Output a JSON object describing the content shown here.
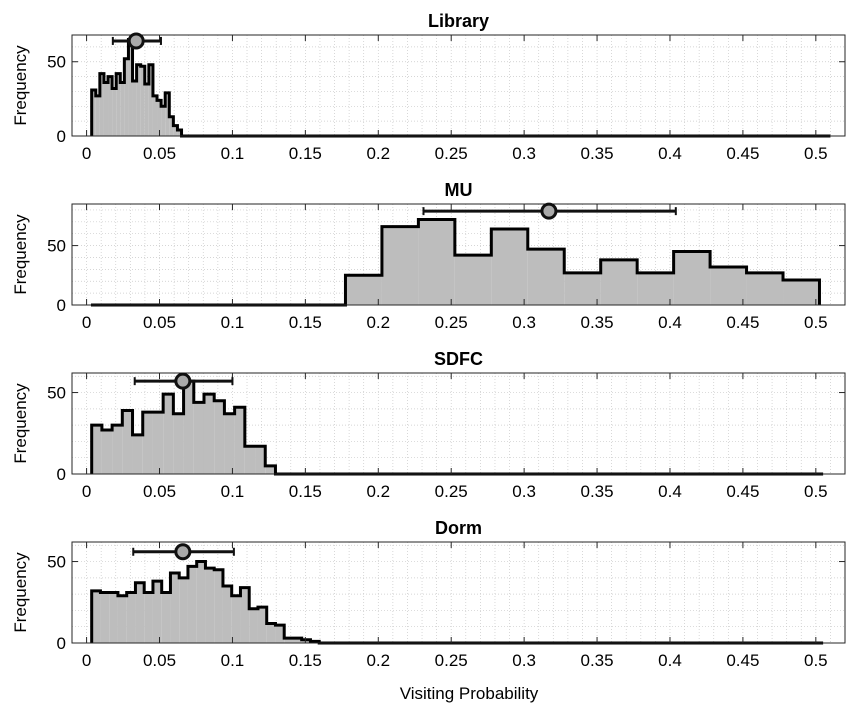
{
  "figure": {
    "xlabel": "Visiting Probability"
  },
  "chart_data": [
    {
      "type": "histogram",
      "title": "Library",
      "ylabel": "Frequency",
      "xlim": [
        -0.01,
        0.52
      ],
      "ylim": [
        0,
        68
      ],
      "xticks": [
        0,
        0.05,
        0.1,
        0.15,
        0.2,
        0.25,
        0.3,
        0.35,
        0.4,
        0.45,
        0.5
      ],
      "xticklabels": [
        "0",
        "0.05",
        "0.1",
        "0.15",
        "0.2",
        "0.25",
        "0.3",
        "0.35",
        "0.4",
        "0.45",
        "0.5"
      ],
      "yticks": [
        0,
        50
      ],
      "yticklabels": [
        "0",
        "50"
      ],
      "grid": true,
      "bin_edges": [
        0.0035,
        0.0063,
        0.0091,
        0.0119,
        0.0147,
        0.0175,
        0.0203,
        0.0231,
        0.0259,
        0.0287,
        0.0315,
        0.0343,
        0.0371,
        0.0399,
        0.0427,
        0.0455,
        0.0483,
        0.0511,
        0.0539,
        0.0567,
        0.0595,
        0.0623,
        0.0651,
        0.0679
      ],
      "counts": [
        31,
        27,
        42,
        36,
        40,
        32,
        42,
        36,
        52,
        65,
        37,
        48,
        47,
        35,
        48,
        27,
        24,
        20,
        29,
        13,
        7,
        4,
        0
      ],
      "tail_end": 0.51,
      "mean": 0.034,
      "err_low": 0.018,
      "err_high": 0.051,
      "marker_y": 64
    },
    {
      "type": "histogram",
      "title": "MU",
      "ylabel": "Frequency",
      "xlim": [
        -0.01,
        0.52
      ],
      "ylim": [
        0,
        85
      ],
      "xticks": [
        0,
        0.05,
        0.1,
        0.15,
        0.2,
        0.25,
        0.3,
        0.35,
        0.4,
        0.45,
        0.5
      ],
      "xticklabels": [
        "0",
        "0.05",
        "0.1",
        "0.15",
        "0.2",
        "0.25",
        "0.3",
        "0.35",
        "0.4",
        "0.45",
        "0.5"
      ],
      "yticks": [
        0,
        50
      ],
      "yticklabels": [
        "0",
        "50"
      ],
      "grid": true,
      "bin_edges": [
        0.1775,
        0.2025,
        0.2275,
        0.2525,
        0.2775,
        0.3025,
        0.3275,
        0.3525,
        0.3775,
        0.4025,
        0.4275,
        0.4525,
        0.4775,
        0.5025
      ],
      "counts": [
        25,
        66,
        72,
        42,
        64,
        47,
        27,
        38,
        27,
        45,
        32,
        27,
        21
      ],
      "head_start": 0.003,
      "mean": 0.317,
      "err_low": 0.231,
      "err_high": 0.404,
      "marker_y": 79
    },
    {
      "type": "histogram",
      "title": "SDFC",
      "ylabel": "Frequency",
      "xlim": [
        -0.01,
        0.52
      ],
      "ylim": [
        0,
        62
      ],
      "xticks": [
        0,
        0.05,
        0.1,
        0.15,
        0.2,
        0.25,
        0.3,
        0.35,
        0.4,
        0.45,
        0.5
      ],
      "xticklabels": [
        "0",
        "0.05",
        "0.1",
        "0.15",
        "0.2",
        "0.25",
        "0.3",
        "0.35",
        "0.4",
        "0.45",
        "0.5"
      ],
      "yticks": [
        0,
        50
      ],
      "yticklabels": [
        "0",
        "50"
      ],
      "grid": true,
      "bin_edges": [
        0.0035,
        0.0105,
        0.0175,
        0.0245,
        0.0315,
        0.0385,
        0.0455,
        0.0525,
        0.0595,
        0.0665,
        0.0735,
        0.0805,
        0.0875,
        0.0945,
        0.1015,
        0.1085,
        0.1155,
        0.1225,
        0.1295,
        0.1365
      ],
      "counts": [
        30,
        27,
        30,
        39,
        24,
        38,
        38,
        49,
        37,
        57,
        44,
        49,
        45,
        37,
        41,
        17,
        17,
        5,
        0
      ],
      "tail_end": 0.505,
      "mean": 0.066,
      "err_low": 0.033,
      "err_high": 0.1,
      "marker_y": 57
    },
    {
      "type": "histogram",
      "title": "Dorm",
      "ylabel": "Frequency",
      "xlim": [
        -0.01,
        0.52
      ],
      "ylim": [
        0,
        62
      ],
      "xticks": [
        0,
        0.05,
        0.1,
        0.15,
        0.2,
        0.25,
        0.3,
        0.35,
        0.4,
        0.45,
        0.5
      ],
      "xticklabels": [
        "0",
        "0.05",
        "0.1",
        "0.15",
        "0.2",
        "0.25",
        "0.3",
        "0.35",
        "0.4",
        "0.45",
        "0.5"
      ],
      "yticks": [
        0,
        50
      ],
      "yticklabels": [
        "0",
        "50"
      ],
      "grid": true,
      "bin_edges": [
        0.0035,
        0.0095,
        0.0155,
        0.0215,
        0.0275,
        0.0335,
        0.0395,
        0.0455,
        0.0515,
        0.0575,
        0.0635,
        0.0695,
        0.0755,
        0.0815,
        0.0875,
        0.0935,
        0.0995,
        0.1055,
        0.1115,
        0.1175,
        0.1235,
        0.1295,
        0.1355,
        0.1415,
        0.1475,
        0.1535,
        0.1595,
        0.1655
      ],
      "counts": [
        32,
        31,
        31,
        29,
        31,
        37,
        31,
        38,
        31,
        43,
        40,
        47,
        50,
        46,
        45,
        35,
        29,
        34,
        21,
        22,
        12,
        11,
        3,
        3,
        2,
        1,
        0
      ],
      "tail_end": 0.505,
      "mean": 0.066,
      "err_low": 0.032,
      "err_high": 0.101,
      "marker_y": 56
    }
  ]
}
